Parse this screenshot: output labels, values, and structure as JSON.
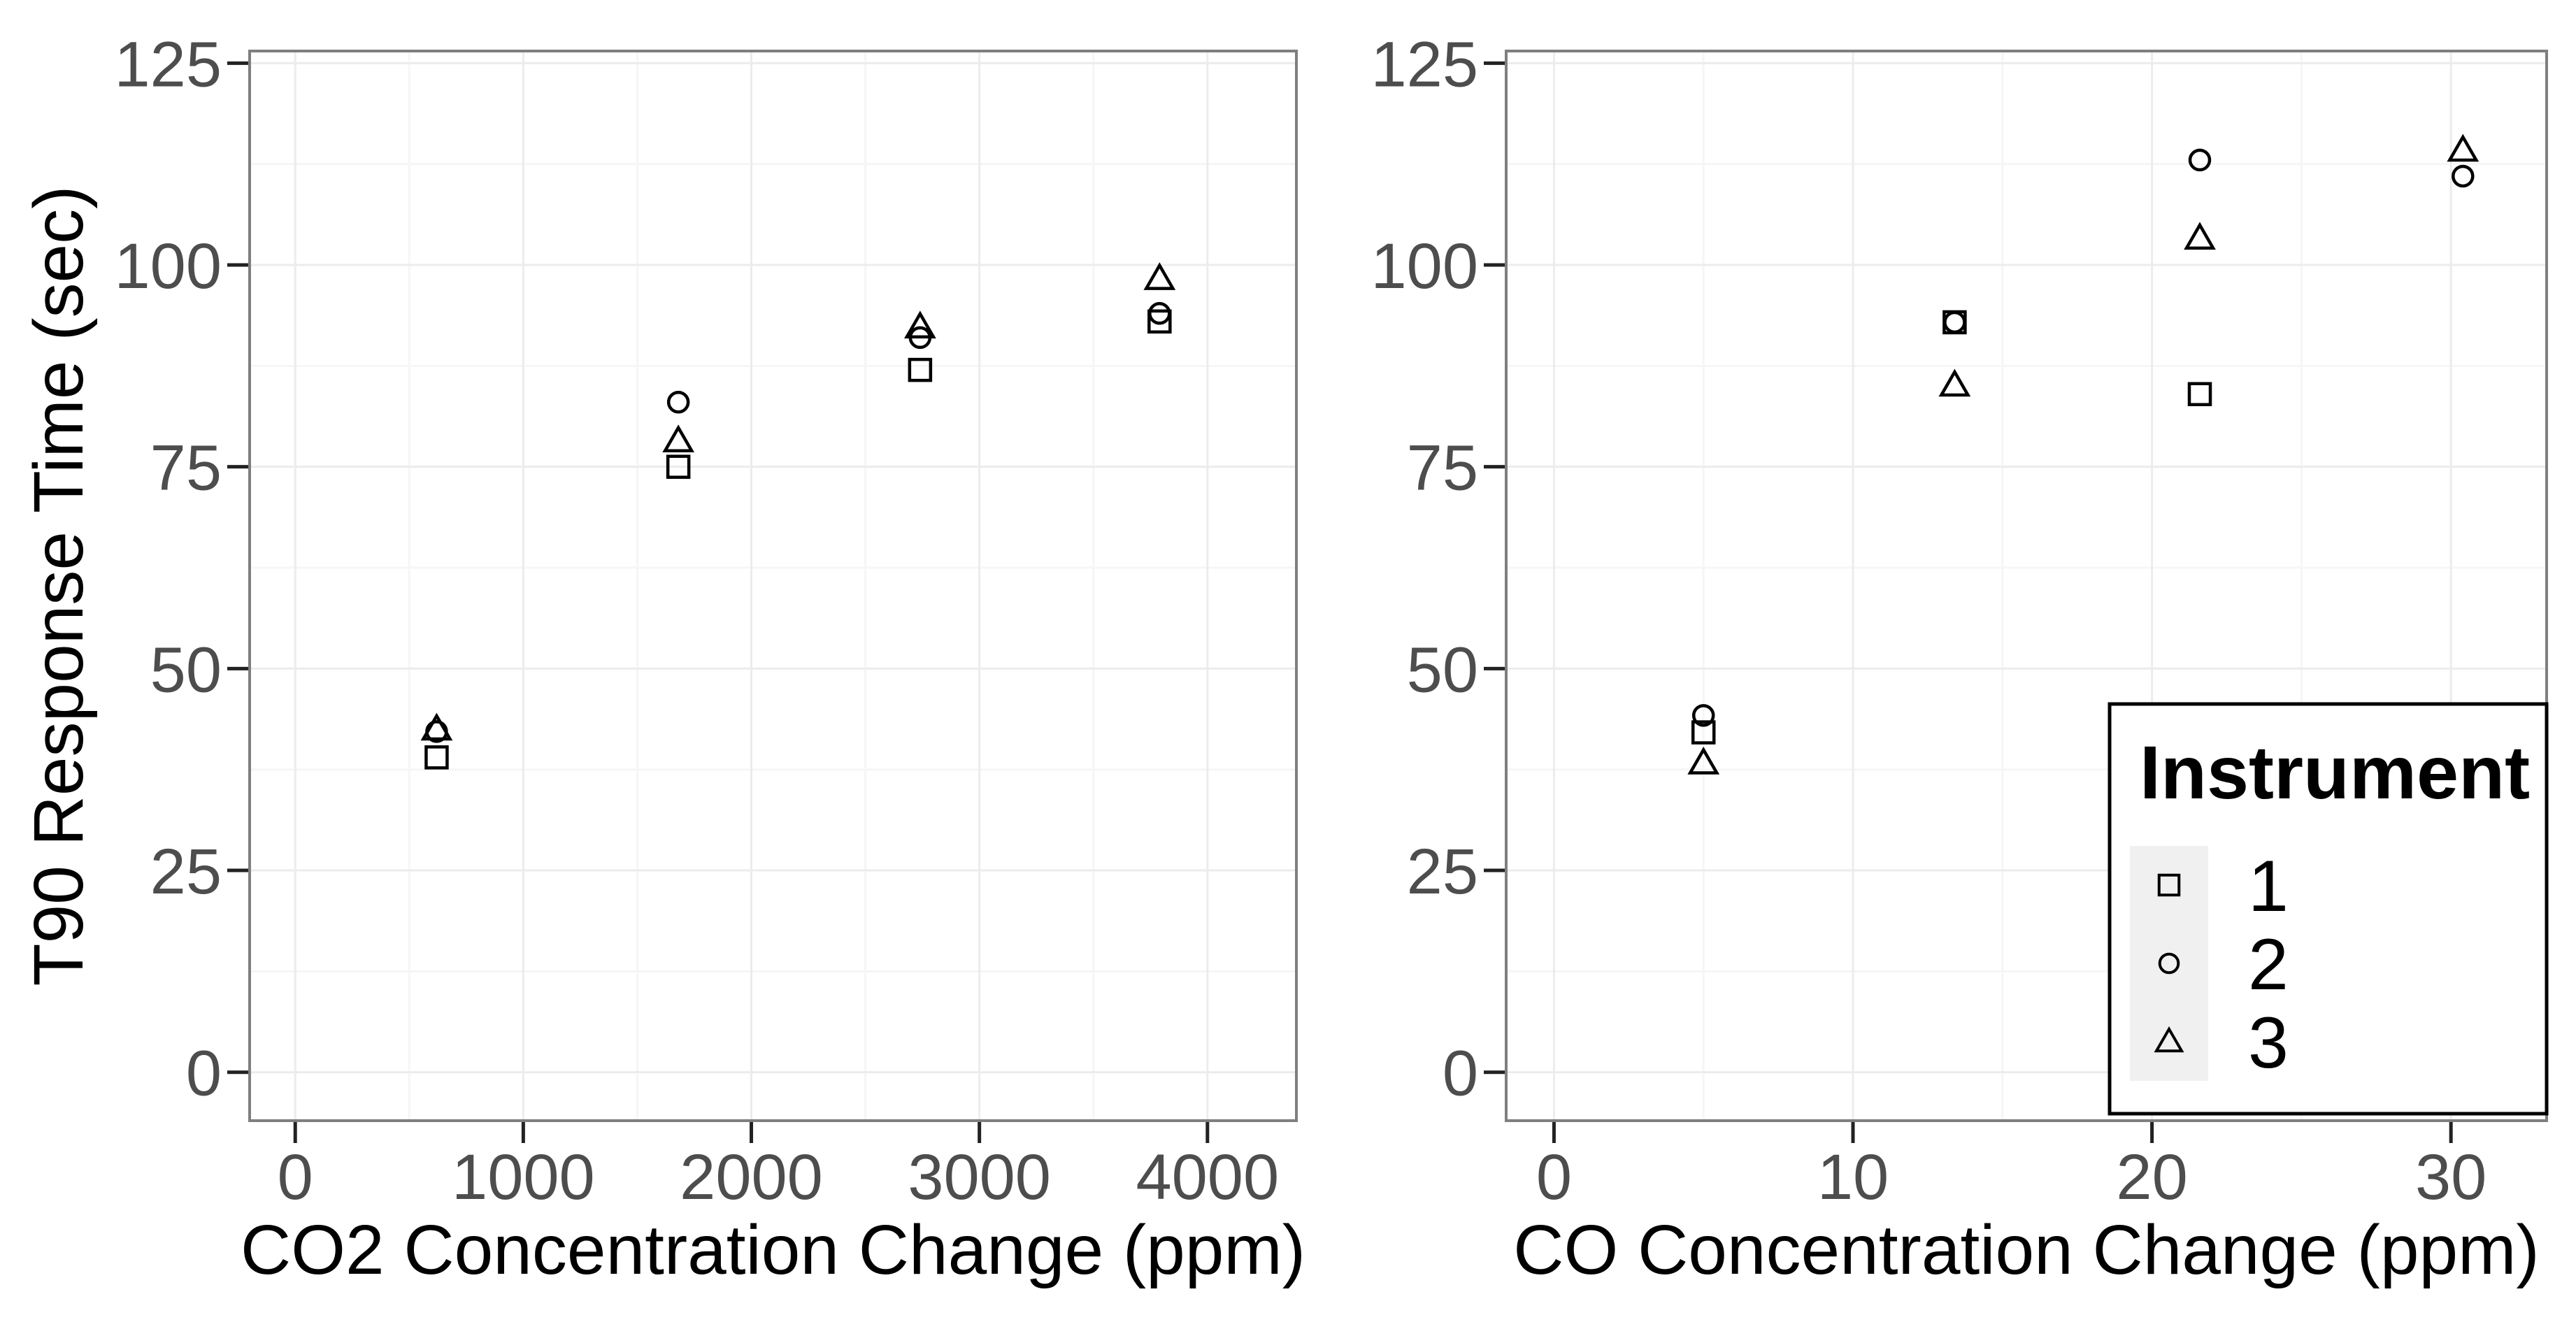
{
  "page": {
    "background": "#ffffff"
  },
  "style": {
    "panel_border_color": "#7f7f7f",
    "grid_major_color": "#ececec",
    "grid_minor_color": "#f6f6f6",
    "tick_mark_color": "#222222",
    "tick_label_color": "#4d4d4d",
    "axis_title_color": "#000000",
    "marker_color": "#000000",
    "legend_border_color": "#000000",
    "legend_bg": "#ffffff",
    "legend_key_bg": "#f0f0f0",
    "legend_text_color": "#000000"
  },
  "chart_data": [
    {
      "type": "scatter",
      "panel": "left",
      "title": "",
      "xlabel": "CO2 Concentration Change (ppm)",
      "ylabel": "T90 Response Time (sec)",
      "xlim": [
        -200,
        4390
      ],
      "ylim": [
        -6,
        126.5
      ],
      "xticks": [
        0,
        1000,
        2000,
        3000,
        4000
      ],
      "yticks": [
        0,
        25,
        50,
        75,
        100,
        125
      ],
      "grid": "major+minor",
      "legend_position": "none",
      "series": [
        {
          "name": "1",
          "marker": "square",
          "points": [
            [
              620,
              39.0
            ],
            [
              1680,
              75.0
            ],
            [
              2740,
              87.0
            ],
            [
              3790,
              93.0
            ]
          ]
        },
        {
          "name": "2",
          "marker": "circle",
          "points": [
            [
              620,
              42.2
            ],
            [
              1680,
              83.0
            ],
            [
              2740,
              91.0
            ],
            [
              3790,
              94.0
            ]
          ]
        },
        {
          "name": "3",
          "marker": "triangle",
          "points": [
            [
              620,
              42.5
            ],
            [
              1680,
              78.2
            ],
            [
              2740,
              92.3
            ],
            [
              3790,
              98.3
            ]
          ]
        }
      ]
    },
    {
      "type": "scatter",
      "panel": "right",
      "title": "",
      "xlabel": "CO Concentration Change (ppm)",
      "ylabel": "",
      "xlim": [
        -1.6,
        33.2
      ],
      "ylim": [
        -6,
        126.5
      ],
      "xticks": [
        0,
        10,
        20,
        30
      ],
      "yticks": [
        0,
        25,
        50,
        75,
        100,
        125
      ],
      "grid": "major+minor",
      "legend_position": "inside-bottom-right",
      "series": [
        {
          "name": "1",
          "marker": "square",
          "points": [
            [
              5,
              42.1
            ],
            [
              13.4,
              92.9
            ],
            [
              21.6,
              84.0
            ]
          ]
        },
        {
          "name": "2",
          "marker": "circle",
          "points": [
            [
              5,
              44.2
            ],
            [
              13.4,
              92.9
            ],
            [
              21.6,
              113.0
            ],
            [
              30.4,
              111.0
            ]
          ]
        },
        {
          "name": "3",
          "marker": "triangle",
          "points": [
            [
              5,
              38.3
            ],
            [
              13.4,
              85.1
            ],
            [
              21.6,
              103.3
            ],
            [
              30.4,
              114.2
            ]
          ]
        }
      ]
    }
  ],
  "legend": {
    "title": "Instrument",
    "items": [
      {
        "label": "1",
        "marker": "square"
      },
      {
        "label": "2",
        "marker": "circle"
      },
      {
        "label": "3",
        "marker": "triangle"
      }
    ]
  }
}
